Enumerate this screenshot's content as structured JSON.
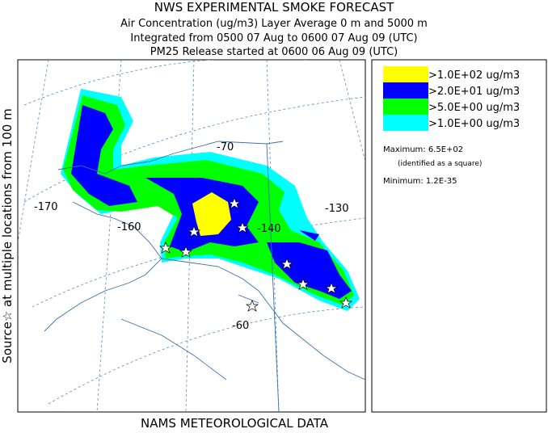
{
  "header": {
    "title": "NWS EXPERIMENTAL SMOKE FORECAST",
    "lines": [
      "Air Concentration (ug/m3) Layer Average    0 m and  5000 m",
      "Integrated from 0500 07 Aug to 0600 07 Aug 09 (UTC)",
      "PM25 Release started at 0600 06 Aug 09 (UTC)"
    ]
  },
  "side_label": "Source☆ at multiple locations from  100 m",
  "footer": "NAMS METEOROLOGICAL DATA",
  "map_labels": [
    "-170",
    "-160",
    "-70",
    "-140",
    "-130",
    "-60"
  ],
  "legend": {
    "entries": [
      {
        "label": ">1.0E+02 ug/m3",
        "color": "#ffff00"
      },
      {
        "label": ">2.0E+01 ug/m3",
        "color": "#0000ff"
      },
      {
        "label": ">5.0E+00 ug/m3",
        "color": "#00ff00"
      },
      {
        "label": ">1.0E+00 ug/m3",
        "color": "#00ffff"
      }
    ],
    "maximum": "Maximum: 6.5E+02",
    "maximum_note": "(identified as a square)",
    "minimum": "Minimum: 1.2E-35"
  }
}
